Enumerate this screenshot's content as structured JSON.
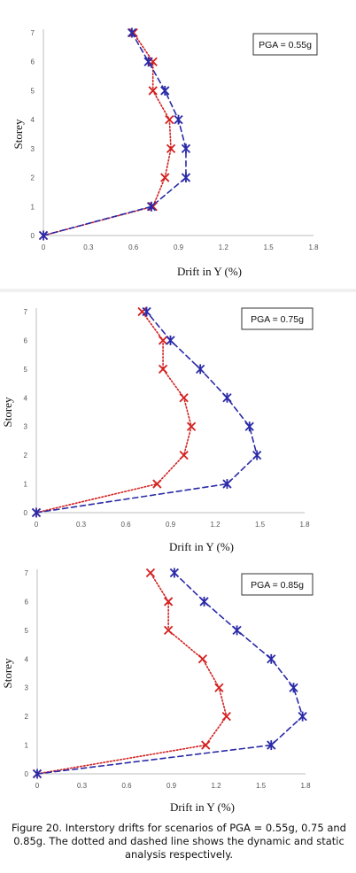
{
  "figure": {
    "caption": "Figure 20. Interstory drifts for scenarios of PGA = 0.55g, 0.75 and 0.85g. The dotted and dashed line shows the dynamic and static analysis respectively."
  },
  "colors": {
    "dynamic": "#d42020",
    "static": "#2a2aa8"
  },
  "chart_data": [
    {
      "type": "line",
      "xlabel": "Drift in Y (%)",
      "ylabel": "Storey",
      "annotation": "PGA = 0.55g",
      "xlim": [
        0,
        1.8
      ],
      "ylim": [
        0,
        7
      ],
      "xticks": [
        "0",
        "0.3",
        "0.6",
        "0.9",
        "1.2",
        "1.5",
        "1.8"
      ],
      "yticks": [
        "0",
        "1",
        "2",
        "3",
        "4",
        "5",
        "6",
        "7"
      ],
      "series": [
        {
          "style": "dotted",
          "marker": "x",
          "color": "#d42020",
          "x": [
            0,
            0.73,
            0.81,
            0.85,
            0.84,
            0.73,
            0.73,
            0.6
          ],
          "y": [
            0,
            1,
            2,
            3,
            4,
            5,
            6,
            7
          ]
        },
        {
          "style": "dashed",
          "marker": "asterisk",
          "color": "#2a2aa8",
          "x": [
            0,
            0.72,
            0.95,
            0.95,
            0.9,
            0.81,
            0.7,
            0.59
          ],
          "y": [
            0,
            1,
            2,
            3,
            4,
            5,
            6,
            7
          ]
        }
      ]
    },
    {
      "type": "line",
      "xlabel": "Drift in Y (%)",
      "ylabel": "Storey",
      "annotation": "PGA = 0.75g",
      "xlim": [
        0,
        1.8
      ],
      "ylim": [
        0,
        7
      ],
      "xticks": [
        "0",
        "0.3",
        "0.6",
        "0.9",
        "1.2",
        "1.5",
        "1.8"
      ],
      "yticks": [
        "0",
        "1",
        "2",
        "3",
        "4",
        "5",
        "6",
        "7"
      ],
      "series": [
        {
          "style": "dotted",
          "marker": "x",
          "color": "#d42020",
          "x": [
            0,
            0.81,
            0.99,
            1.04,
            0.99,
            0.85,
            0.85,
            0.71
          ],
          "y": [
            0,
            1,
            2,
            3,
            4,
            5,
            6,
            7
          ]
        },
        {
          "style": "dashed",
          "marker": "asterisk",
          "color": "#2a2aa8",
          "x": [
            0,
            1.28,
            1.48,
            1.43,
            1.28,
            1.1,
            0.9,
            0.74
          ],
          "y": [
            0,
            1,
            2,
            3,
            4,
            5,
            6,
            7
          ]
        }
      ]
    },
    {
      "type": "line",
      "xlabel": "Drift in Y (%)",
      "ylabel": "Storey",
      "annotation": "PGA = 0.85g",
      "xlim": [
        0,
        1.8
      ],
      "ylim": [
        0,
        7
      ],
      "xticks": [
        "0",
        "0.3",
        "0.6",
        "0.9",
        "1.2",
        "1.5",
        "1.8"
      ],
      "yticks": [
        "0",
        "1",
        "2",
        "3",
        "4",
        "5",
        "6",
        "7"
      ],
      "series": [
        {
          "style": "dotted",
          "marker": "x",
          "color": "#d42020",
          "x": [
            0,
            1.13,
            1.27,
            1.22,
            1.11,
            0.88,
            0.88,
            0.76
          ],
          "y": [
            0,
            1,
            2,
            3,
            4,
            5,
            6,
            7
          ]
        },
        {
          "style": "dashed",
          "marker": "asterisk",
          "color": "#2a2aa8",
          "x": [
            0,
            1.57,
            1.78,
            1.72,
            1.57,
            1.34,
            1.12,
            0.92
          ],
          "y": [
            0,
            1,
            2,
            3,
            4,
            5,
            6,
            7
          ]
        }
      ]
    }
  ]
}
